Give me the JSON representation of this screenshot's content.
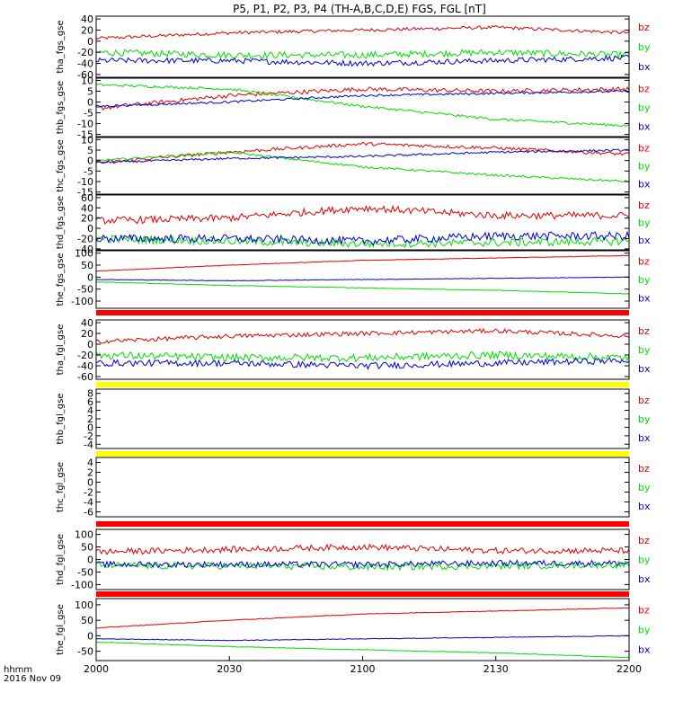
{
  "title": "P5, P1, P2, P3, P4 (TH-A,B,C,D,E) FGS, FGL [nT]",
  "x_axis": {
    "ticks": [
      "2000",
      "2030",
      "2100",
      "2130",
      "2200"
    ],
    "label_top": "hhmm",
    "label_bottom": "2016 Nov 09"
  },
  "colors": {
    "bx": "#0000cc",
    "by": "#00dd00",
    "bz": "#dd0000",
    "bar_red": "#ff0000",
    "bar_yellow": "#ffff00"
  },
  "chart_data": [
    {
      "type": "line",
      "panel": "tha_fgs_gse",
      "ylabel": "tha_fgs_gse",
      "yticks": [
        40,
        20,
        0,
        -20,
        -40,
        -60
      ],
      "ylim": [
        -65,
        45
      ],
      "legend": [
        "bz",
        "by",
        "bx"
      ],
      "series": [
        {
          "name": "bz",
          "x": [
            0,
            0.25,
            0.5,
            0.75,
            1.0
          ],
          "values": [
            5,
            15,
            20,
            25,
            15
          ],
          "noise": 3
        },
        {
          "name": "by",
          "x": [
            0,
            0.25,
            0.5,
            0.75,
            1.0
          ],
          "values": [
            -20,
            -25,
            -25,
            -20,
            -25
          ],
          "noise": 6
        },
        {
          "name": "bx",
          "x": [
            0,
            0.25,
            0.5,
            0.75,
            1.0
          ],
          "values": [
            -35,
            -35,
            -40,
            -35,
            -30
          ],
          "noise": 5
        }
      ]
    },
    {
      "type": "line",
      "panel": "thb_fgs_gse",
      "ylabel": "thb_fgs_gse",
      "yticks": [
        10,
        5,
        0,
        -5,
        -10,
        -15
      ],
      "ylim": [
        -16,
        11
      ],
      "legend": [
        "bz",
        "by",
        "bx"
      ],
      "series": [
        {
          "name": "bz",
          "x": [
            0,
            0.25,
            0.5,
            0.75,
            1.0
          ],
          "values": [
            -3,
            3,
            6,
            5,
            6
          ],
          "noise": 1
        },
        {
          "name": "by",
          "x": [
            0,
            0.25,
            0.5,
            0.75,
            1.0
          ],
          "values": [
            8,
            6,
            -2,
            -8,
            -11
          ],
          "noise": 0.6
        },
        {
          "name": "bx",
          "x": [
            0,
            0.25,
            0.5,
            0.75,
            1.0
          ],
          "values": [
            -2,
            0,
            3,
            4,
            5
          ],
          "noise": 0.5
        }
      ]
    },
    {
      "type": "line",
      "panel": "thc_fgs_gse",
      "ylabel": "thc_fgs_gse",
      "yticks": [
        10,
        5,
        0,
        -5,
        -10,
        -15
      ],
      "ylim": [
        -16,
        11
      ],
      "legend": [
        "bz",
        "by",
        "bx"
      ],
      "series": [
        {
          "name": "bz",
          "x": [
            0,
            0.25,
            0.5,
            0.75,
            1.0
          ],
          "values": [
            -1,
            4,
            8,
            6,
            3
          ],
          "noise": 0.8
        },
        {
          "name": "by",
          "x": [
            0,
            0.25,
            0.5,
            0.75,
            1.0
          ],
          "values": [
            0,
            4,
            -3,
            -7,
            -10
          ],
          "noise": 0.5
        },
        {
          "name": "bx",
          "x": [
            0,
            0.25,
            0.5,
            0.75,
            1.0
          ],
          "values": [
            -1,
            1,
            2,
            4,
            5
          ],
          "noise": 0.5
        }
      ]
    },
    {
      "type": "line",
      "panel": "thd_fgs_gse",
      "ylabel": "thd_fgs_gse",
      "yticks": [
        60,
        40,
        20,
        0,
        -20,
        -40
      ],
      "ylim": [
        -42,
        65
      ],
      "legend": [
        "bz",
        "by",
        "bx"
      ],
      "series": [
        {
          "name": "bz",
          "x": [
            0,
            0.25,
            0.5,
            0.75,
            1.0
          ],
          "values": [
            15,
            20,
            40,
            25,
            25
          ],
          "noise": 7
        },
        {
          "name": "by",
          "x": [
            0,
            0.25,
            0.5,
            0.75,
            1.0
          ],
          "values": [
            -20,
            -25,
            -30,
            -28,
            -25
          ],
          "noise": 8
        },
        {
          "name": "bx",
          "x": [
            0,
            0.25,
            0.5,
            0.75,
            1.0
          ],
          "values": [
            -20,
            -20,
            -25,
            -15,
            -15
          ],
          "noise": 8
        }
      ]
    },
    {
      "type": "line",
      "panel": "the_fgs_gse",
      "ylabel": "the_fgs_gse",
      "yticks": [
        100,
        50,
        0,
        -50,
        -100
      ],
      "ylim": [
        -130,
        110
      ],
      "legend": [
        "bz",
        "by",
        "bx"
      ],
      "series": [
        {
          "name": "bz",
          "x": [
            0,
            0.25,
            0.5,
            0.75,
            1.0
          ],
          "values": [
            25,
            50,
            70,
            80,
            90
          ],
          "noise": 1
        },
        {
          "name": "by",
          "x": [
            0,
            0.25,
            0.5,
            0.75,
            1.0
          ],
          "values": [
            -20,
            -35,
            -45,
            -55,
            -70
          ],
          "noise": 1
        },
        {
          "name": "bx",
          "x": [
            0,
            0.25,
            0.5,
            0.75,
            1.0
          ],
          "values": [
            -10,
            -15,
            -10,
            -5,
            0
          ],
          "noise": 1
        }
      ]
    },
    {
      "type": "line",
      "panel": "tha_fgl_gse",
      "ylabel": "tha_fgl_gse",
      "yticks": [
        40,
        20,
        0,
        -20,
        -40,
        -60
      ],
      "ylim": [
        -65,
        45
      ],
      "legend": [
        "bz",
        "by",
        "bx"
      ],
      "series": [
        {
          "name": "bz",
          "x": [
            0,
            0.25,
            0.5,
            0.75,
            1.0
          ],
          "values": [
            5,
            15,
            20,
            25,
            15
          ],
          "noise": 4
        },
        {
          "name": "by",
          "x": [
            0,
            0.25,
            0.5,
            0.75,
            1.0
          ],
          "values": [
            -20,
            -25,
            -25,
            -20,
            -25
          ],
          "noise": 7
        },
        {
          "name": "bx",
          "x": [
            0,
            0.25,
            0.5,
            0.75,
            1.0
          ],
          "values": [
            -35,
            -35,
            -40,
            -35,
            -30
          ],
          "noise": 6
        }
      ]
    },
    {
      "type": "line",
      "panel": "thb_fgl_gse",
      "ylabel": "thb_fgl_gse",
      "yticks": [
        8,
        6,
        4,
        2,
        0,
        -2,
        -4
      ],
      "ylim": [
        -5,
        9
      ],
      "legend": [
        "bz",
        "by",
        "bx"
      ],
      "series": []
    },
    {
      "type": "line",
      "panel": "thc_fgl_gse",
      "ylabel": "thc_fgl_gse",
      "yticks": [
        4,
        2,
        0,
        -2,
        -4,
        -6
      ],
      "ylim": [
        -7,
        5
      ],
      "legend": [
        "bz",
        "by",
        "bx"
      ],
      "series": []
    },
    {
      "type": "line",
      "panel": "thd_fgl_gse",
      "ylabel": "thd_fgl_gse",
      "yticks": [
        100,
        50,
        0,
        -50,
        -100
      ],
      "ylim": [
        -120,
        120
      ],
      "legend": [
        "bz",
        "by",
        "bx"
      ],
      "series": [
        {
          "name": "bz",
          "x": [
            0,
            0.25,
            0.5,
            0.75,
            1.0
          ],
          "values": [
            30,
            40,
            50,
            35,
            35
          ],
          "noise": 12
        },
        {
          "name": "by",
          "x": [
            0,
            0.25,
            0.5,
            0.75,
            1.0
          ],
          "values": [
            -25,
            -25,
            -30,
            -25,
            -20
          ],
          "noise": 14
        },
        {
          "name": "bx",
          "x": [
            0,
            0.25,
            0.5,
            0.75,
            1.0
          ],
          "values": [
            -20,
            -20,
            -20,
            -15,
            -15
          ],
          "noise": 12
        }
      ]
    },
    {
      "type": "line",
      "panel": "the_fgl_gse",
      "ylabel": "the_fgl_gse",
      "yticks": [
        100,
        50,
        0,
        -50
      ],
      "ylim": [
        -80,
        120
      ],
      "legend": [
        "bz",
        "by",
        "bx"
      ],
      "series": [
        {
          "name": "bz",
          "x": [
            0,
            0.25,
            0.5,
            0.75,
            1.0
          ],
          "values": [
            25,
            50,
            70,
            80,
            90
          ],
          "noise": 1
        },
        {
          "name": "by",
          "x": [
            0,
            0.25,
            0.5,
            0.75,
            1.0
          ],
          "values": [
            -20,
            -35,
            -45,
            -55,
            -70
          ],
          "noise": 1
        },
        {
          "name": "bx",
          "x": [
            0,
            0.25,
            0.5,
            0.75,
            1.0
          ],
          "values": [
            -10,
            -15,
            -10,
            -5,
            0
          ],
          "noise": 1
        }
      ]
    }
  ]
}
